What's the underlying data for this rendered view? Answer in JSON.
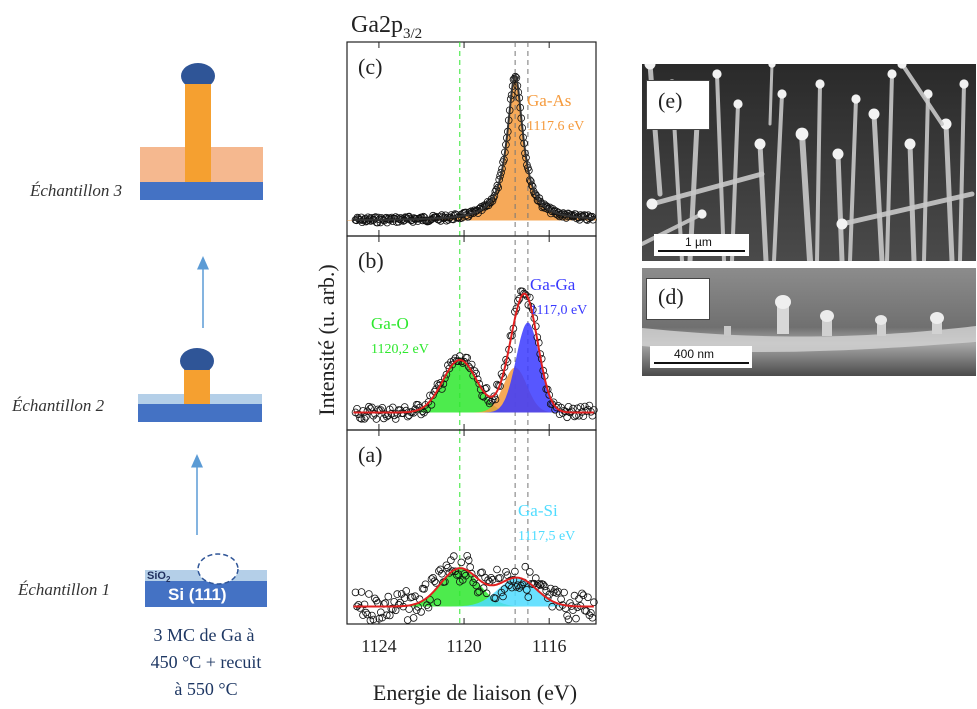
{
  "samples": {
    "sample1_label": "Échantillon 1",
    "sample2_label": "Échantillon 2",
    "sample3_label": "Échantillon 3",
    "si_label": "Si (111)",
    "sio2_label": "SiO",
    "sio2_sub": "2",
    "procedure_line1": "3 MC de Ga à",
    "procedure_line2": "450 °C + recuit",
    "procedure_line3": "à 550 °C"
  },
  "colors": {
    "substrate": "#4472c4",
    "oxide": "#b4cfe8",
    "nanowire": "#f5a030",
    "matrix": "#f5b88f",
    "droplet": "#2f5597",
    "arrow": "#5b9bd5",
    "ga_o": "#2ee82e",
    "ga_as": "#f59a3c",
    "ga_ga": "#3a3aff",
    "ga_si": "#4fdcff",
    "envelope": "#e02020"
  },
  "chart_data": {
    "type": "line",
    "title": "Ga2p",
    "title_sub": "3/2",
    "xlabel": "Energie de liaison (eV)",
    "ylabel": "Intensité (u. arb.)",
    "xlim": [
      1125.5,
      1113.8
    ],
    "x_reversed": true,
    "xticks": [
      1124,
      1120,
      1116
    ],
    "reference_lines": [
      1120.2,
      1117.6,
      1117.0
    ],
    "panels": [
      {
        "letter": "(c)",
        "components": [
          {
            "name": "Ga-As",
            "energy_label": "1117.6 eV",
            "center": 1117.6,
            "height": 1.0,
            "sigma": 0.6
          }
        ]
      },
      {
        "letter": "(b)",
        "components": [
          {
            "name": "Ga-O",
            "energy_label": "1120,2 eV",
            "center": 1120.2,
            "height": 0.42,
            "sigma": 0.8
          },
          {
            "name": "",
            "energy_label": "",
            "center": 1117.6,
            "height": 0.36,
            "sigma": 0.55
          },
          {
            "name": "Ga-Ga",
            "energy_label": "1117,0 eV",
            "center": 1117.0,
            "height": 0.72,
            "sigma": 0.55
          }
        ]
      },
      {
        "letter": "(a)",
        "components": [
          {
            "name": "",
            "energy_label": "",
            "center": 1120.2,
            "height": 0.4,
            "sigma": 0.9
          },
          {
            "name": "Ga-Si",
            "energy_label": "1117,5 eV",
            "center": 1117.5,
            "height": 0.3,
            "sigma": 0.9
          }
        ]
      }
    ]
  },
  "sem": {
    "top_letter": "(e)",
    "top_scale": "1 µm",
    "bottom_letter": "(d)",
    "bottom_scale": "400 nm"
  }
}
